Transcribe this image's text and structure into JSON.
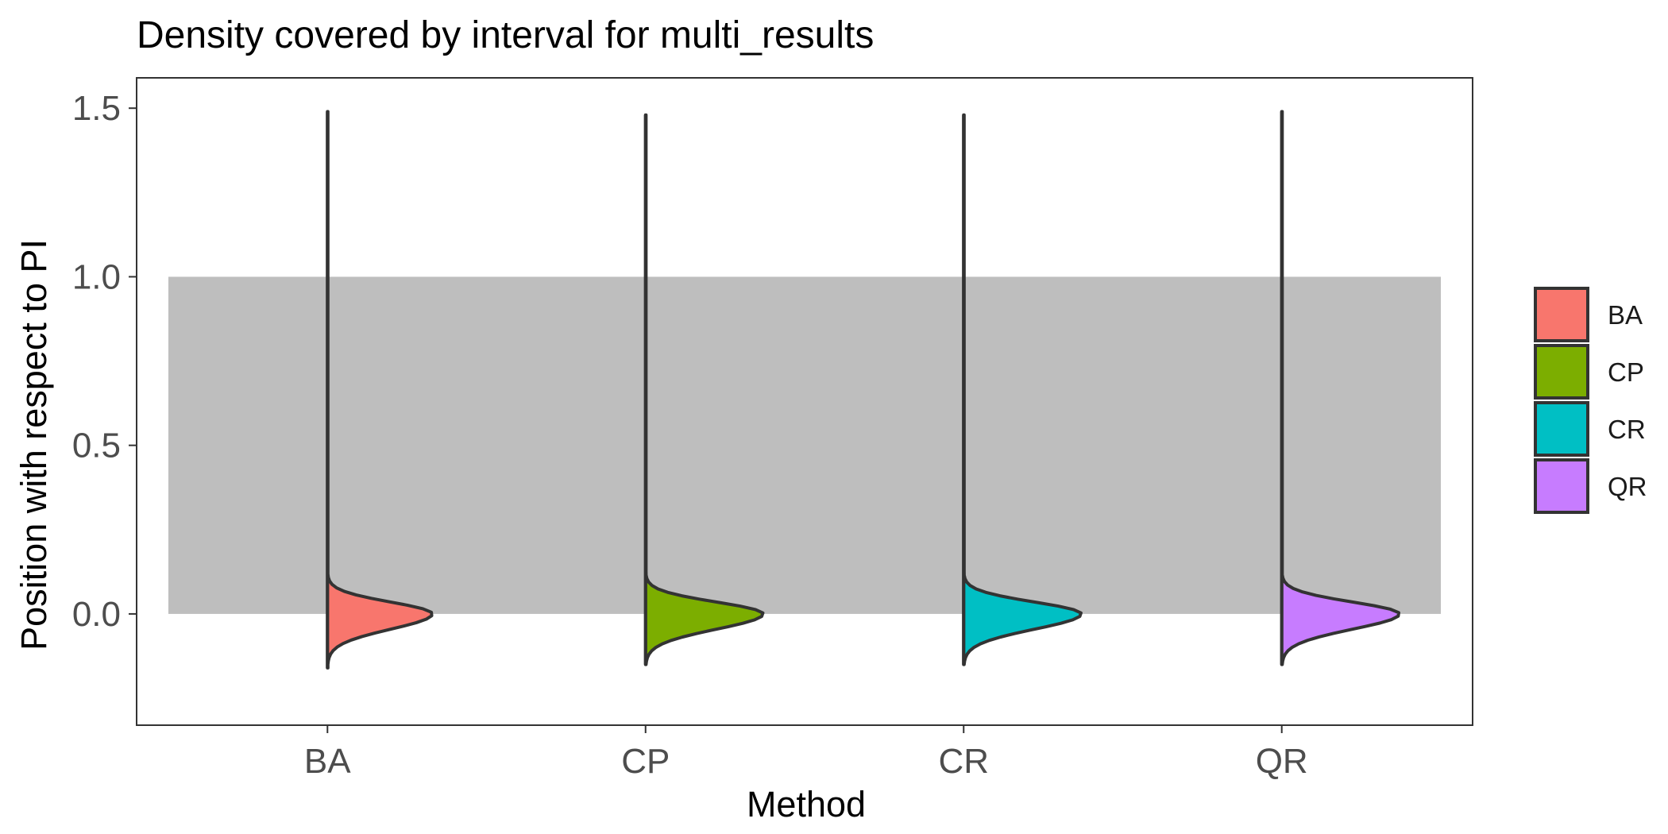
{
  "chart_data": {
    "type": "violin",
    "title": "Density covered by interval for multi_results",
    "xlabel": "Method",
    "ylabel": "Position with respect to PI",
    "categories": [
      "BA",
      "CP",
      "CR",
      "QR"
    ],
    "ylim": [
      -0.33,
      1.59
    ],
    "yticks": [
      0.0,
      0.5,
      1.0,
      1.5
    ],
    "ytick_labels": [
      "0.0",
      "0.5",
      "1.0",
      "1.5"
    ],
    "interval_band": {
      "ymin": 0.0,
      "ymax": 1.0,
      "color": "#bebebe"
    },
    "series": [
      {
        "name": "BA",
        "color": "#F8766D",
        "ymin": -0.16,
        "ymax": 1.49,
        "mode": 0.0,
        "max_width": 0.33
      },
      {
        "name": "CP",
        "color": "#7CAE00",
        "ymin": -0.15,
        "ymax": 1.48,
        "mode": 0.0,
        "max_width": 0.37
      },
      {
        "name": "CR",
        "color": "#00BFC4",
        "ymin": -0.15,
        "ymax": 1.48,
        "mode": 0.0,
        "max_width": 0.37
      },
      {
        "name": "QR",
        "color": "#C77CFF",
        "ymin": -0.15,
        "ymax": 1.49,
        "mode": 0.0,
        "max_width": 0.37
      }
    ],
    "legend": {
      "position": "right",
      "entries": [
        "BA",
        "CP",
        "CR",
        "QR"
      ]
    },
    "grid": false
  }
}
